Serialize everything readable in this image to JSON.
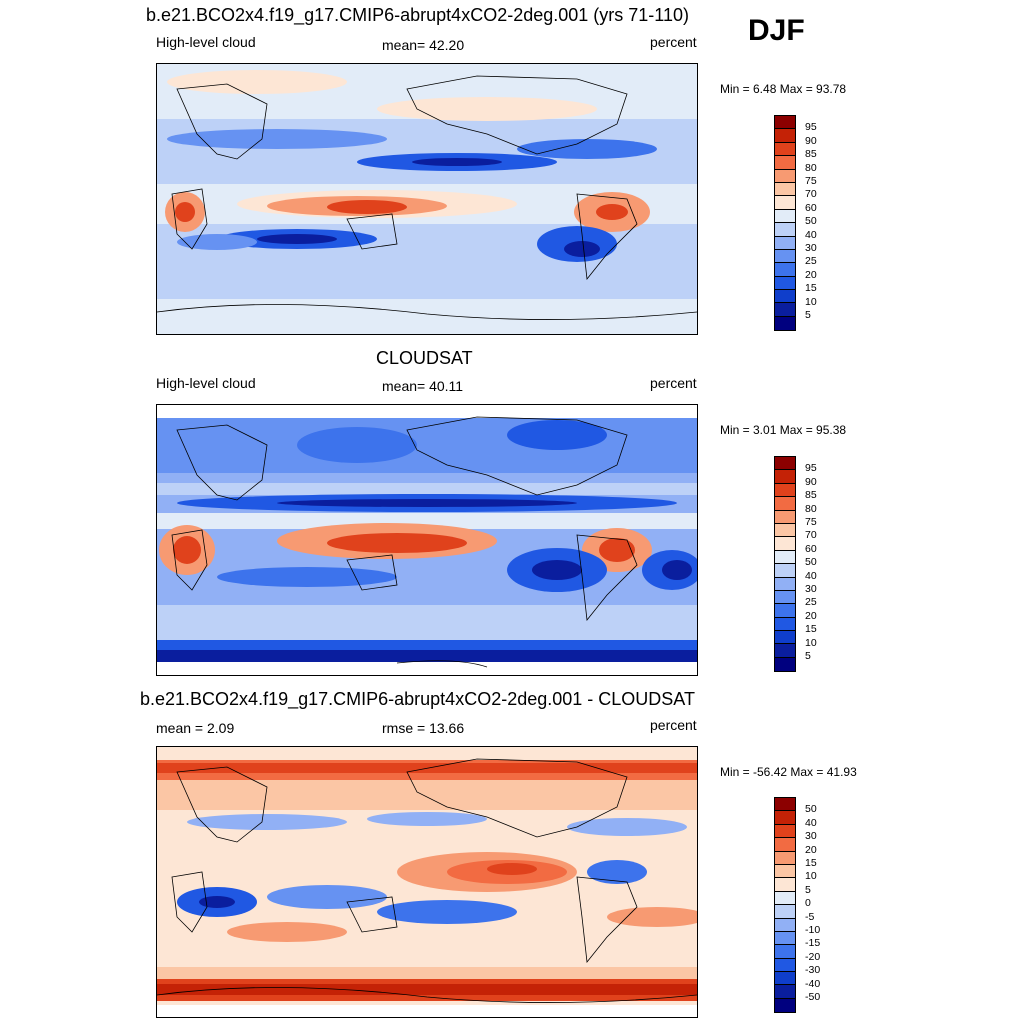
{
  "season": "DJF",
  "panels": [
    {
      "title": "b.e21.BCO2x4.f19_g17.CMIP6-abrupt4xCO2-2deg.001 (yrs 71-110)",
      "left_label": "High-level cloud",
      "center_label": "mean=  42.20",
      "right_label": "percent",
      "minmax": "Min =   6.48 Max =  93.78"
    },
    {
      "title": "CLOUDSAT",
      "left_label": "High-level cloud",
      "center_label": "mean=  40.11",
      "right_label": "percent",
      "minmax": "Min =   3.01 Max =  95.38"
    },
    {
      "title": "b.e21.BCO2x4.f19_g17.CMIP6-abrupt4xCO2-2deg.001 - CLOUDSAT",
      "left_label": "mean =   2.09",
      "center_label": "rmse =  13.66",
      "right_label": "percent",
      "minmax": "Min = -56.42 Max =  41.93"
    }
  ],
  "chart_data": [
    {
      "type": "heatmap",
      "title": "b.e21.BCO2x4.f19_g17.CMIP6-abrupt4xCO2-2deg.001 (yrs 71-110)",
      "variable": "High-level cloud",
      "units": "percent",
      "mean": 42.2,
      "min": 6.48,
      "max": 93.78,
      "colorbar_levels": [
        5,
        10,
        15,
        20,
        25,
        30,
        40,
        50,
        60,
        70,
        75,
        80,
        85,
        90,
        95
      ],
      "colors": [
        "#00007f",
        "#0a1e9e",
        "#0f3ecb",
        "#2058e3",
        "#3d73ec",
        "#6692f2",
        "#91b0f5",
        "#bdd1f7",
        "#e2ecf8",
        "#fde6d5",
        "#fbc6a5",
        "#f79a72",
        "#f26b42",
        "#e0421c",
        "#c42206",
        "#8c0000"
      ]
    },
    {
      "type": "heatmap",
      "title": "CLOUDSAT",
      "variable": "High-level cloud",
      "units": "percent",
      "mean": 40.11,
      "min": 3.01,
      "max": 95.38,
      "colorbar_levels": [
        5,
        10,
        15,
        20,
        25,
        30,
        40,
        50,
        60,
        70,
        75,
        80,
        85,
        90,
        95
      ],
      "colors": [
        "#00007f",
        "#0a1e9e",
        "#0f3ecb",
        "#2058e3",
        "#3d73ec",
        "#6692f2",
        "#91b0f5",
        "#bdd1f7",
        "#e2ecf8",
        "#fde6d5",
        "#fbc6a5",
        "#f79a72",
        "#f26b42",
        "#e0421c",
        "#c42206",
        "#8c0000"
      ]
    },
    {
      "type": "heatmap",
      "title": "b.e21.BCO2x4.f19_g17.CMIP6-abrupt4xCO2-2deg.001 - CLOUDSAT",
      "units": "percent",
      "mean": 2.09,
      "rmse": 13.66,
      "min": -56.42,
      "max": 41.93,
      "colorbar_levels": [
        -50,
        -40,
        -30,
        -20,
        -15,
        -10,
        -5,
        0,
        5,
        10,
        15,
        20,
        30,
        40,
        50
      ],
      "colors": [
        "#00007f",
        "#0a1e9e",
        "#0f3ecb",
        "#2058e3",
        "#3d73ec",
        "#6692f2",
        "#91b0f5",
        "#bdd1f7",
        "#e2ecf8",
        "#fde6d5",
        "#fbc6a5",
        "#f79a72",
        "#f26b42",
        "#e0421c",
        "#c42206",
        "#8c0000"
      ]
    }
  ]
}
